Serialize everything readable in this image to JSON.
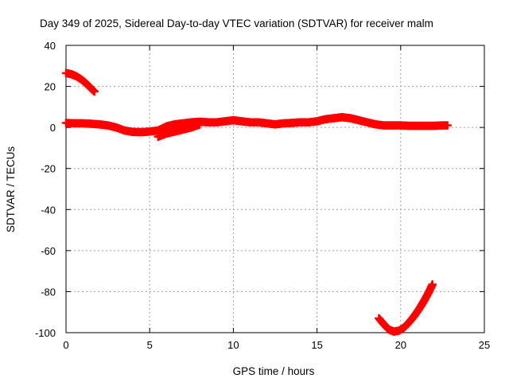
{
  "chart_data": {
    "type": "scatter",
    "title": "Day 349 of 2025, Sidereal Day-to-day VTEC variation (SDTVAR) for receiver malm",
    "xlabel": "GPS time / hours",
    "ylabel": "SDTVAR / TECUs",
    "xlim": [
      0,
      25
    ],
    "ylim": [
      -100,
      40
    ],
    "x_ticks": [
      0,
      5,
      10,
      15,
      20,
      25
    ],
    "y_ticks": [
      -100,
      -80,
      -60,
      -40,
      -20,
      0,
      20,
      40
    ],
    "grid": true,
    "marker": "plus",
    "color": "#ff0000",
    "series": [
      {
        "name": "main-trace",
        "points": [
          [
            0.0,
            2.2
          ],
          [
            0.5,
            2.0
          ],
          [
            1.0,
            2.0
          ],
          [
            1.5,
            1.8
          ],
          [
            2.0,
            1.5
          ],
          [
            2.5,
            1.0
          ],
          [
            3.0,
            0.0
          ],
          [
            3.5,
            -1.5
          ],
          [
            4.0,
            -2.2
          ],
          [
            4.5,
            -2.3
          ],
          [
            5.0,
            -2.0
          ],
          [
            5.5,
            -1.5
          ],
          [
            6.0,
            0.5
          ],
          [
            6.5,
            1.5
          ],
          [
            7.0,
            2.0
          ],
          [
            7.5,
            2.5
          ],
          [
            8.0,
            2.8
          ],
          [
            8.5,
            2.5
          ],
          [
            9.0,
            2.5
          ],
          [
            9.5,
            3.0
          ],
          [
            10.0,
            3.5
          ],
          [
            10.5,
            3.0
          ],
          [
            11.0,
            2.5
          ],
          [
            11.5,
            2.5
          ],
          [
            12.0,
            2.0
          ],
          [
            12.5,
            1.5
          ],
          [
            13.0,
            2.0
          ],
          [
            13.5,
            2.2
          ],
          [
            14.0,
            2.5
          ],
          [
            14.5,
            2.5
          ],
          [
            15.0,
            3.0
          ],
          [
            15.5,
            4.0
          ],
          [
            16.0,
            4.5
          ],
          [
            16.5,
            5.0
          ],
          [
            17.0,
            4.5
          ],
          [
            17.5,
            3.5
          ],
          [
            18.0,
            2.5
          ],
          [
            18.5,
            1.5
          ],
          [
            19.0,
            1.0
          ],
          [
            19.5,
            1.0
          ],
          [
            20.0,
            1.0
          ],
          [
            20.5,
            0.8
          ],
          [
            21.0,
            0.8
          ],
          [
            21.5,
            0.8
          ],
          [
            22.0,
            0.8
          ],
          [
            22.5,
            1.0
          ],
          [
            22.8,
            1.0
          ]
        ]
      },
      {
        "name": "branch-dip",
        "points": [
          [
            5.5,
            -4.5
          ],
          [
            6.0,
            -3.0
          ],
          [
            6.5,
            -2.0
          ],
          [
            7.0,
            -1.0
          ],
          [
            7.5,
            0.0
          ],
          [
            8.0,
            1.5
          ]
        ]
      },
      {
        "name": "early-high",
        "points": [
          [
            0.0,
            26.5
          ],
          [
            0.3,
            26.0
          ],
          [
            0.6,
            25.0
          ],
          [
            0.9,
            23.5
          ],
          [
            1.2,
            21.5
          ],
          [
            1.5,
            19.0
          ],
          [
            1.7,
            17.5
          ]
        ]
      },
      {
        "name": "late-low",
        "points": [
          [
            18.7,
            -93.0
          ],
          [
            19.0,
            -96.0
          ],
          [
            19.3,
            -98.5
          ],
          [
            19.6,
            -99.5
          ],
          [
            19.9,
            -99.0
          ],
          [
            20.2,
            -97.5
          ],
          [
            20.5,
            -95.0
          ],
          [
            20.8,
            -92.0
          ],
          [
            21.1,
            -88.5
          ],
          [
            21.4,
            -84.5
          ],
          [
            21.7,
            -80.0
          ],
          [
            21.9,
            -76.5
          ]
        ]
      }
    ]
  }
}
